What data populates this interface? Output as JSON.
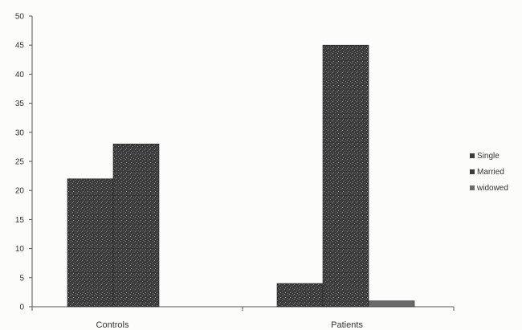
{
  "chart_data": {
    "type": "bar",
    "categories": [
      "Controls",
      "Patients"
    ],
    "series": [
      {
        "name": "Single",
        "values": [
          22,
          4
        ]
      },
      {
        "name": "Married",
        "values": [
          28,
          45
        ]
      },
      {
        "name": "widowed",
        "values": [
          0,
          1
        ]
      }
    ],
    "title": "",
    "xlabel": "",
    "ylabel": "",
    "ylim": [
      0,
      50
    ],
    "yticks": [
      0,
      5,
      10,
      15,
      20,
      25,
      30,
      35,
      40,
      45,
      50
    ],
    "grid": false,
    "legend_position": "right",
    "colors": {
      "bar_fill": "#3a3a3a",
      "bar_edge": "#222222",
      "widowed_fill": "#6a6a6a"
    }
  }
}
